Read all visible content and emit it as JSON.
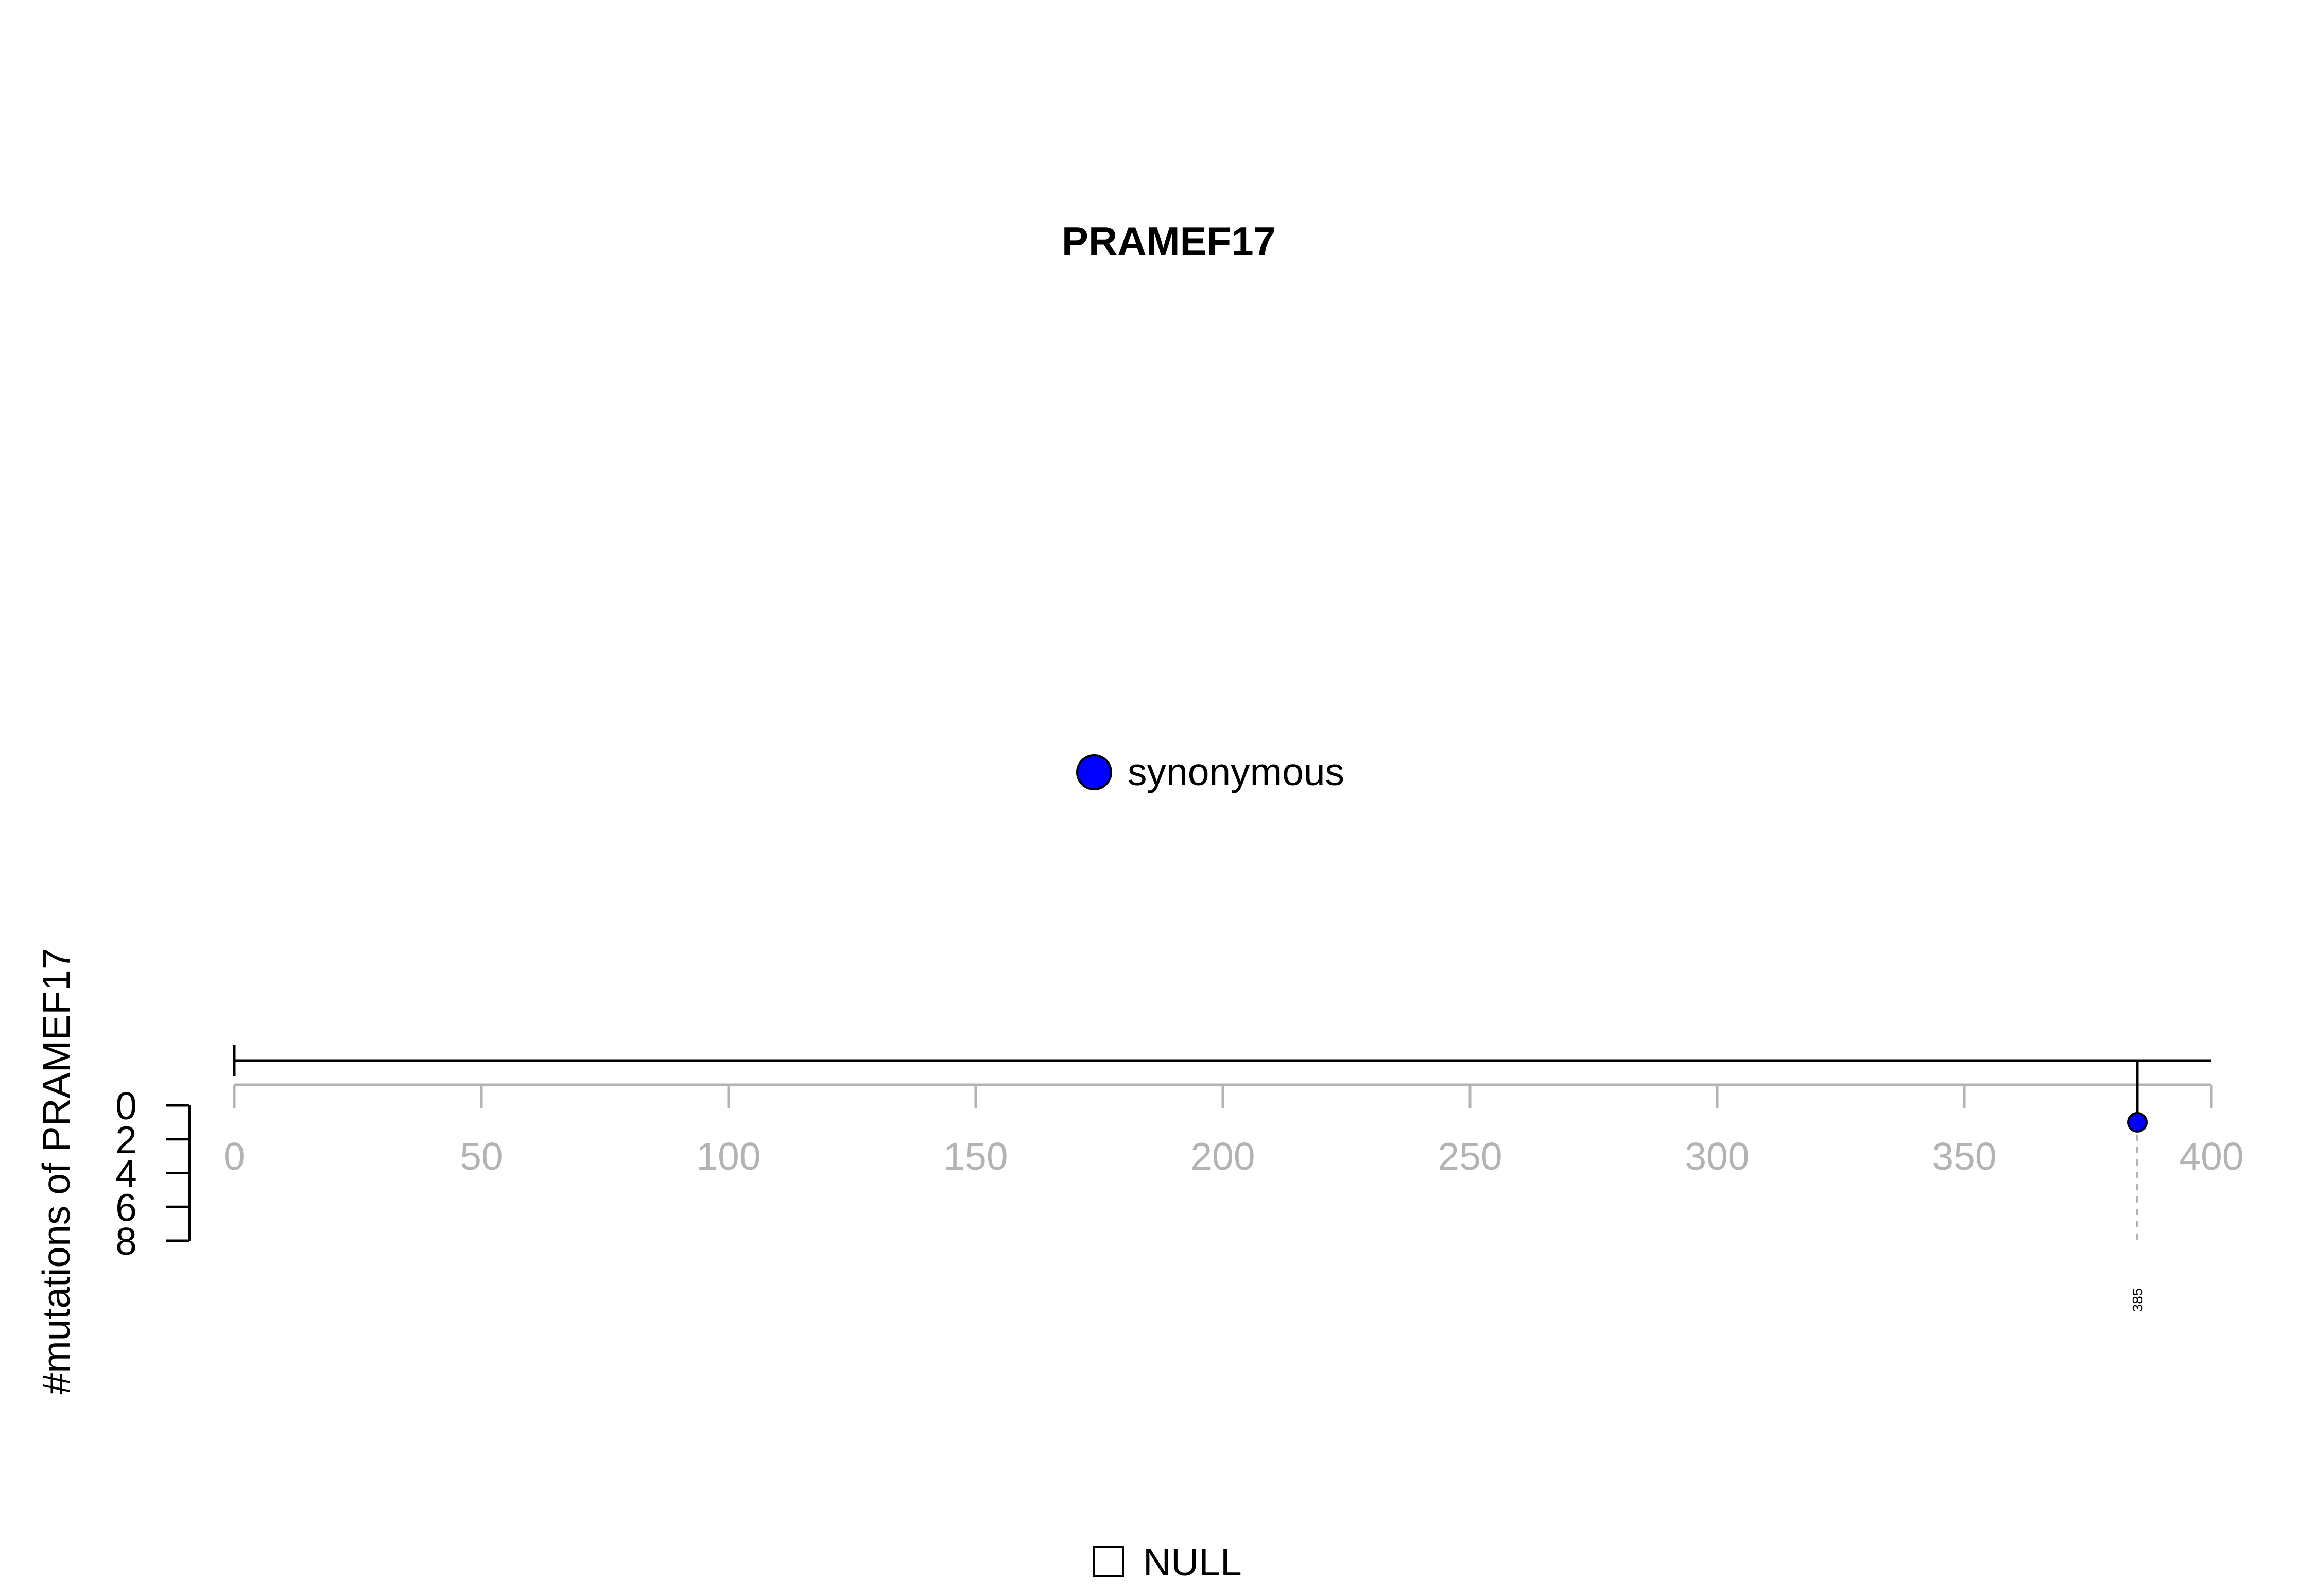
{
  "chart_data": {
    "type": "lollipop",
    "title": "PRAMEF17",
    "ylabel": "#mutations of PRAMEF17",
    "xlim": [
      0,
      400
    ],
    "x_ticks": [
      "0",
      "50",
      "100",
      "150",
      "200",
      "250",
      "300",
      "350",
      "400"
    ],
    "ylim": [
      0,
      8
    ],
    "y_ticks": [
      "0",
      "2",
      "4",
      "6",
      "8"
    ],
    "legend_top": [
      {
        "label": "synonymous",
        "color": "#0000ff"
      }
    ],
    "legend_bottom": [
      {
        "label": "NULL",
        "color": "#ffffff"
      }
    ],
    "mutations": [
      {
        "position": 385,
        "position_label": "385",
        "count": 1,
        "type": "synonymous",
        "color": "#0000ff"
      }
    ],
    "protein_length": 400
  }
}
